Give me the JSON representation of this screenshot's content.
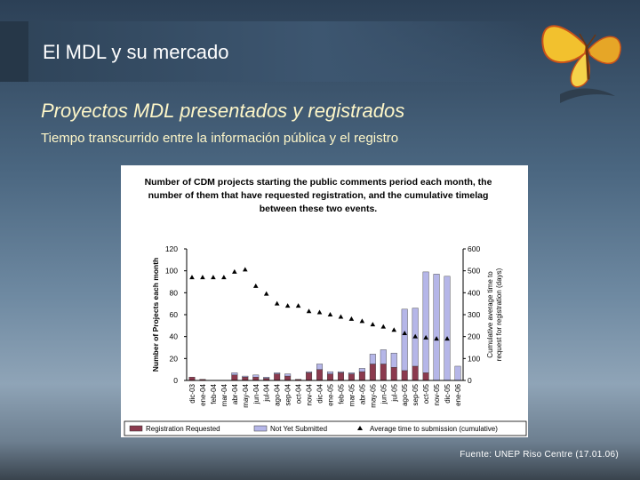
{
  "slide": {
    "title": "El MDL y su mercado",
    "subtitle": "Proyectos MDL presentados y registrados",
    "caption": "Tiempo transcurrido entre la información pública y el registro",
    "source": "Fuente: UNEP Riso Centre (17.01.06)"
  },
  "colors": {
    "registration": "#8b3a4e",
    "not_submitted": "#b5b6e8",
    "timelag": "#000000",
    "title_text": "#ffffff",
    "subtitle_text": "#fdf6c8"
  },
  "chart_data": {
    "type": "bar",
    "title_lines": [
      "Number of CDM projects starting the public comments period each month, the",
      "number of them that have requested registration, and the cumulative timelag",
      "between these two events."
    ],
    "ylabel": "Number of Projects each month",
    "y2label_lines": [
      "Cumulative average time to",
      "request for registration (days)"
    ],
    "ylim": [
      0,
      120
    ],
    "y2lim": [
      0,
      600
    ],
    "yticks": [
      0,
      20,
      40,
      60,
      80,
      100,
      120
    ],
    "y2ticks": [
      0,
      100,
      200,
      300,
      400,
      500,
      600
    ],
    "grid": false,
    "legend_position": "bottom",
    "categories": [
      "dic-03",
      "ene-04",
      "feb-04",
      "mar-04",
      "abr-04",
      "may-04",
      "jun-04",
      "jul-04",
      "ago-04",
      "sep-04",
      "oct-04",
      "nov-04",
      "dic-04",
      "ene-05",
      "feb-05",
      "mar-05",
      "abr-05",
      "may-05",
      "jun-05",
      "jul-05",
      "ago-05",
      "sep-05",
      "oct-05",
      "nov-05",
      "dic-05",
      "ene-06"
    ],
    "series": [
      {
        "name": "Registration Requested",
        "kind": "bar",
        "values": [
          3,
          1,
          0,
          0,
          5,
          3,
          3,
          2,
          6,
          4,
          1,
          7,
          10,
          6,
          7,
          6,
          8,
          15,
          15,
          12,
          9,
          13,
          7,
          0,
          0,
          0
        ]
      },
      {
        "name": "Not Yet Submitted",
        "kind": "bar",
        "values": [
          0,
          0,
          0,
          0,
          2,
          1,
          2,
          1,
          1,
          2,
          0,
          1,
          5,
          2,
          1,
          1,
          3,
          9,
          13,
          13,
          56,
          53,
          92,
          97,
          95,
          13
        ]
      },
      {
        "name": "Average time to submission (cumulative)",
        "kind": "line-markers",
        "axis": "right",
        "values": [
          470,
          470,
          470,
          470,
          495,
          505,
          430,
          395,
          350,
          340,
          340,
          315,
          310,
          300,
          290,
          280,
          270,
          255,
          245,
          230,
          215,
          200,
          195,
          190,
          190,
          null
        ]
      }
    ]
  }
}
